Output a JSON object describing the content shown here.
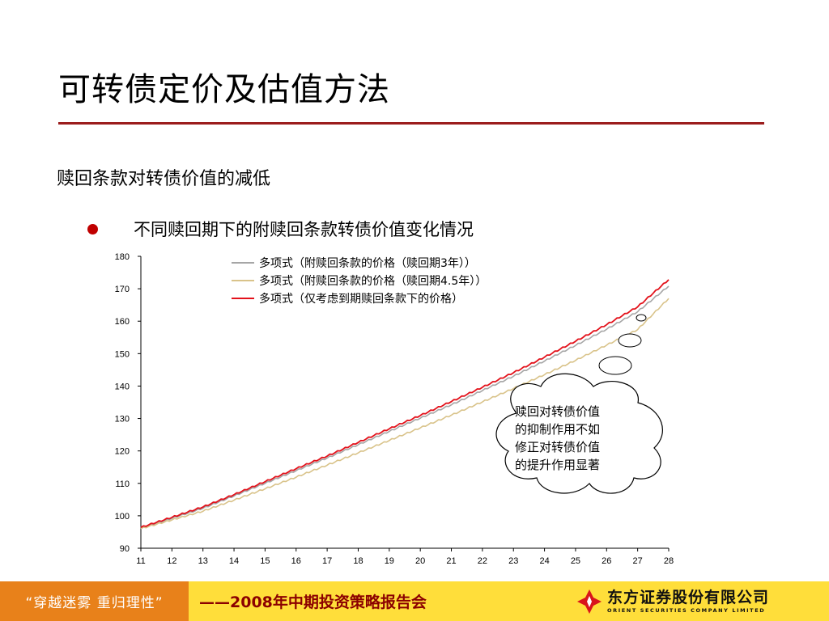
{
  "slide": {
    "title": "可转债定价及估值方法",
    "subheading": "赎回条款对转债价值的减低",
    "bullet": "不同赎回期下的附赎回条款转债价值变化情况"
  },
  "callout": {
    "lines": [
      "赎回对转债价值",
      "的抑制作用不如",
      "修正对转债价值",
      "的提升作用显著"
    ]
  },
  "footer": {
    "slogan": "“穿越迷雾  重归理性”",
    "report": "——2008年中期投资策略报告会",
    "company_cn": "东方证券股份有限公司",
    "company_en": "ORIENT SECURITIES COMPANY LIMITED"
  },
  "colors": {
    "accent": "#9b1c1c",
    "footer_bg": "#ffde3a",
    "footer_left": "#e8811a",
    "logo_red": "#d9141b"
  },
  "chart_data": {
    "type": "line",
    "title": "",
    "xlabel": "",
    "ylabel": "",
    "x": [
      11,
      12,
      13,
      14,
      15,
      16,
      17,
      18,
      19,
      20,
      21,
      22,
      23,
      24,
      25,
      26,
      27,
      28
    ],
    "xlim": [
      11,
      28
    ],
    "ylim": [
      90,
      180
    ],
    "yticks": [
      90,
      100,
      110,
      120,
      130,
      140,
      150,
      160,
      170,
      180
    ],
    "legend_position": "top-left",
    "series": [
      {
        "name": "多项式（附赎回条款的价格（赎回期3年））",
        "color": "#a6a6a6",
        "values": [
          96.2,
          99.2,
          102.3,
          106.1,
          110.0,
          113.9,
          117.8,
          121.9,
          126.0,
          130.1,
          134.2,
          138.6,
          143.0,
          147.7,
          152.5,
          157.5,
          162.9,
          170.8
        ]
      },
      {
        "name": "多项式（附赎回条款的价格（赎回期4.5年））",
        "color": "#d9c38a",
        "values": [
          96.0,
          98.7,
          101.4,
          104.8,
          108.3,
          111.9,
          115.6,
          119.4,
          123.2,
          127.1,
          131.0,
          135.1,
          139.2,
          143.5,
          147.9,
          152.6,
          157.4,
          167.0
        ]
      },
      {
        "name": "多项式（仅考虑到期赎回条款下的价格）",
        "color": "#e3121b",
        "values": [
          96.4,
          99.5,
          102.7,
          106.5,
          110.5,
          114.5,
          118.4,
          122.6,
          126.8,
          130.9,
          135.2,
          139.6,
          144.1,
          148.9,
          153.8,
          158.9,
          164.4,
          172.8
        ]
      }
    ]
  }
}
